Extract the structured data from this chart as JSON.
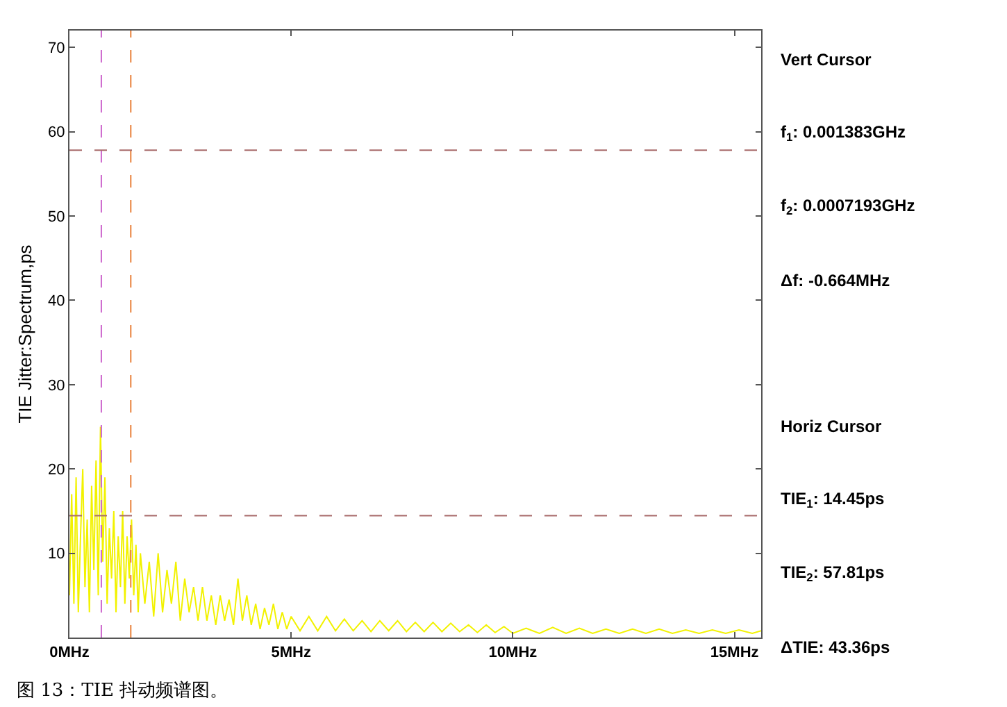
{
  "chart_data": {
    "type": "line",
    "ylabel": "TIE Jitter:Spectrum,ps",
    "x": [
      0,
      0.05,
      0.1,
      0.15,
      0.2,
      0.25,
      0.3,
      0.35,
      0.4,
      0.45,
      0.5,
      0.55,
      0.6,
      0.65,
      0.7,
      0.75,
      0.8,
      0.85,
      0.9,
      0.95,
      1.0,
      1.05,
      1.1,
      1.15,
      1.2,
      1.25,
      1.3,
      1.35,
      1.4,
      1.45,
      1.5,
      1.55,
      1.6,
      1.7,
      1.8,
      1.9,
      2.0,
      2.1,
      2.2,
      2.3,
      2.4,
      2.5,
      2.6,
      2.7,
      2.8,
      2.9,
      3.0,
      3.1,
      3.2,
      3.3,
      3.4,
      3.5,
      3.6,
      3.7,
      3.8,
      3.9,
      4.0,
      4.1,
      4.2,
      4.3,
      4.4,
      4.5,
      4.6,
      4.7,
      4.8,
      4.9,
      5.0,
      5.2,
      5.4,
      5.6,
      5.8,
      6.0,
      6.2,
      6.4,
      6.6,
      6.8,
      7.0,
      7.2,
      7.4,
      7.6,
      7.8,
      8.0,
      8.2,
      8.4,
      8.6,
      8.8,
      9.0,
      9.2,
      9.4,
      9.6,
      9.8,
      10.0,
      10.3,
      10.6,
      10.9,
      11.2,
      11.5,
      11.8,
      12.1,
      12.4,
      12.7,
      13.0,
      13.3,
      13.6,
      13.9,
      14.2,
      14.5,
      14.8,
      15.1,
      15.4,
      15.6
    ],
    "series": [
      {
        "color": "#f2f200",
        "values": [
          5,
          17,
          4,
          19,
          3,
          12,
          20,
          6,
          14,
          3,
          18,
          8,
          21,
          5,
          25,
          9,
          19,
          4,
          13,
          7,
          15,
          3,
          12,
          6,
          15,
          4,
          12,
          7,
          14,
          5,
          11,
          3,
          10,
          4,
          9,
          2.5,
          10,
          3,
          8,
          4,
          9,
          2,
          7,
          3,
          6,
          2,
          6,
          2,
          5,
          1.5,
          5,
          2,
          4.5,
          1.5,
          7,
          2,
          5,
          1.5,
          4,
          1,
          3.5,
          1.5,
          4,
          1,
          3,
          1,
          2.5,
          0.8,
          2.5,
          0.8,
          2.5,
          0.8,
          2.2,
          0.8,
          2,
          0.7,
          2,
          0.8,
          2,
          0.7,
          1.8,
          0.7,
          1.8,
          0.7,
          1.7,
          0.7,
          1.5,
          0.6,
          1.5,
          0.6,
          1.3,
          0.5,
          1.1,
          0.5,
          1.2,
          0.5,
          1.1,
          0.5,
          1.0,
          0.5,
          1.0,
          0.5,
          1.0,
          0.5,
          0.9,
          0.5,
          0.9,
          0.5,
          0.9,
          0.5,
          0.8
        ]
      }
    ],
    "xlim": [
      0,
      15.6
    ],
    "ylim": [
      0,
      72
    ],
    "xticks": [
      {
        "value": 0,
        "label": "0MHz"
      },
      {
        "value": 5,
        "label": "5MHz"
      },
      {
        "value": 10,
        "label": "10MHz"
      },
      {
        "value": 15,
        "label": "15MHz"
      }
    ],
    "yticks": [
      10,
      20,
      30,
      40,
      50,
      60,
      70
    ],
    "grid": false,
    "marker": "none",
    "line_style": "solid",
    "ref_lines": [
      {
        "axis": "x",
        "value": 0.7193,
        "color": "#cc66cc",
        "line_style": "dashed"
      },
      {
        "axis": "x",
        "value": 1.383,
        "color": "#e8803a",
        "line_style": "dashed"
      },
      {
        "axis": "y",
        "value": 14.45,
        "color": "#a86a6a",
        "line_style": "dashed"
      },
      {
        "axis": "y",
        "value": 57.81,
        "color": "#a86a6a",
        "line_style": "dashed"
      }
    ],
    "annotations": [
      "Vert Cursor",
      "f$_{1}$: 0.001383GHz",
      "f$_{2}$: 0.0007193GHz",
      "Δf: -0.664MHz",
      "Horiz Cursor",
      "TIE$_{1}$: 14.45ps",
      "TIE$_{2}$: 57.81ps",
      "ΔTIE: 43.36ps",
      "图 13：TIE 抖动频谱图。"
    ]
  }
}
